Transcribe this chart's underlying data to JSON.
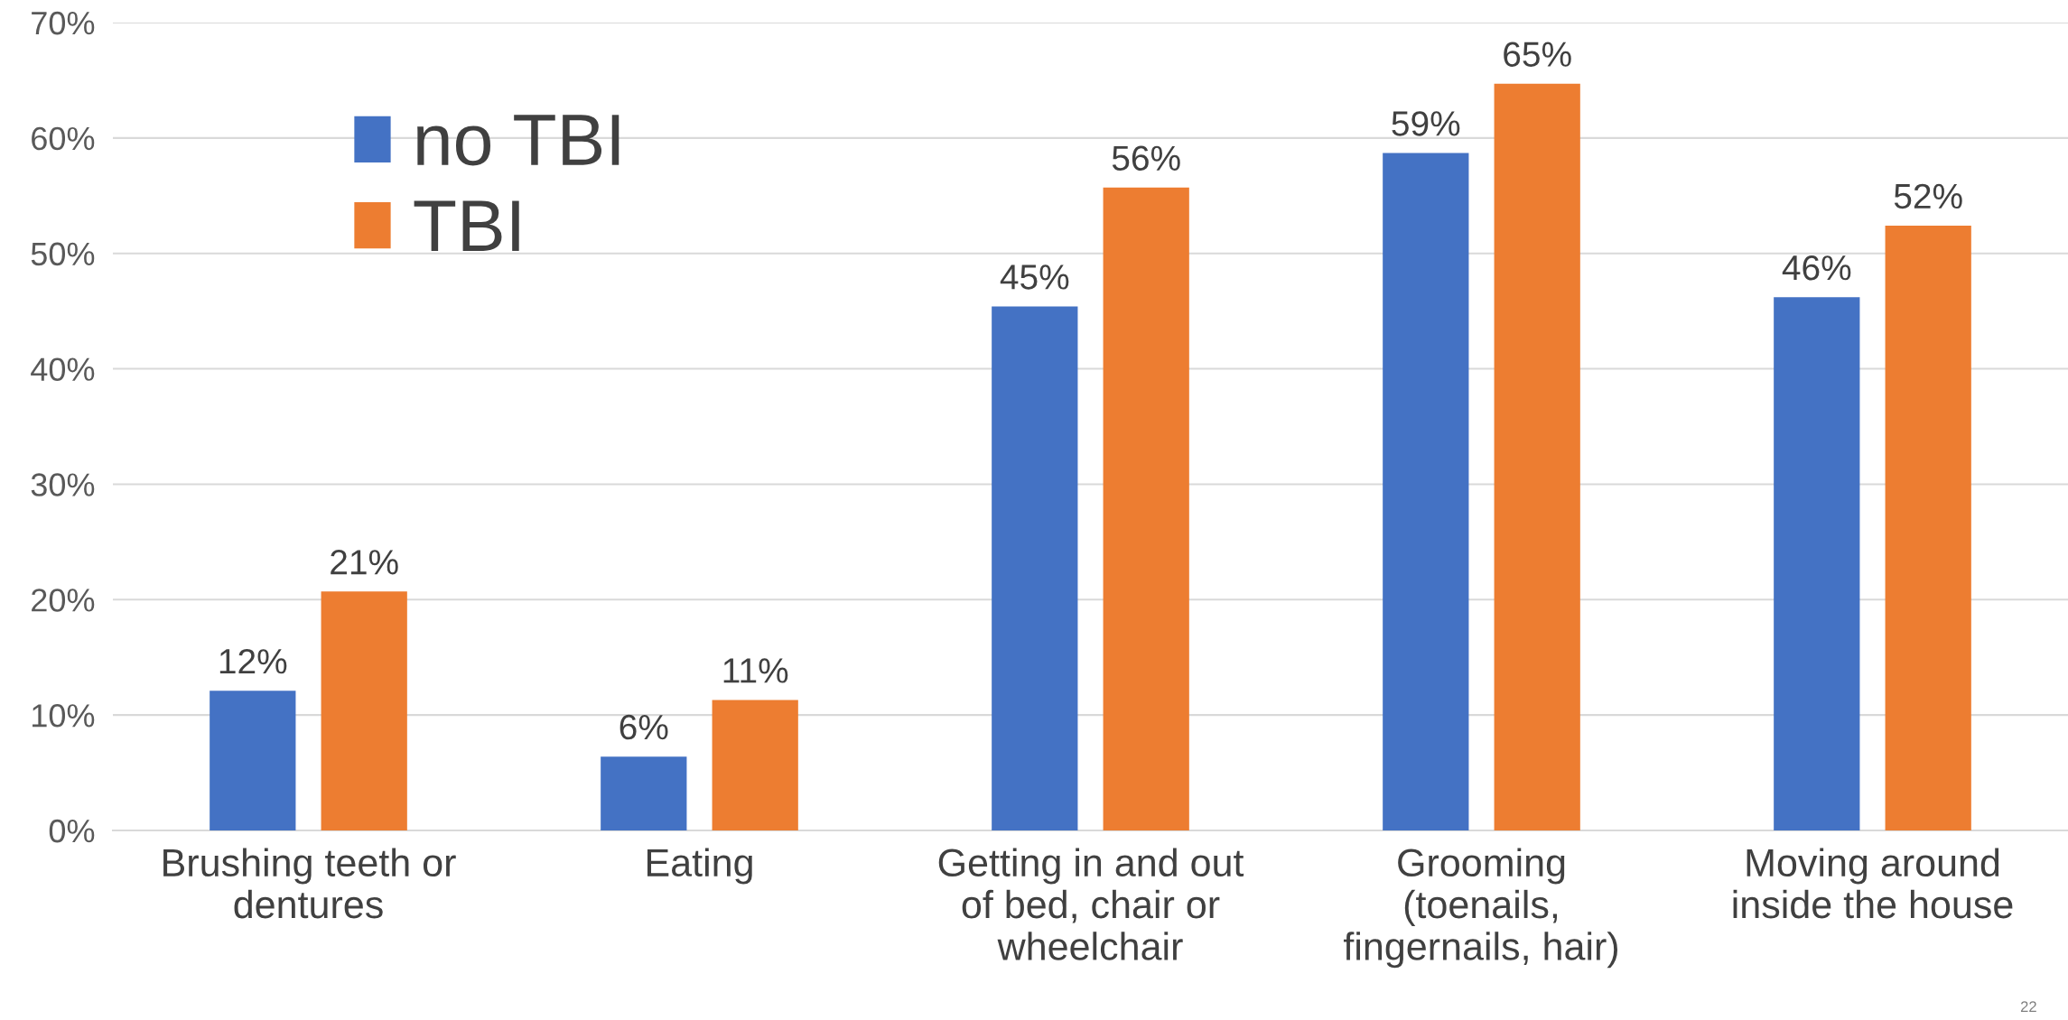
{
  "chart_data": {
    "type": "bar",
    "categories": [
      "Brushing teeth or\ndentures",
      "Eating",
      "Getting in and out\nof bed, chair or\nwheelchair",
      "Grooming\n(toenails,\nfingernails, hair)",
      "Moving around\ninside the house"
    ],
    "series": [
      {
        "name": "no TBI",
        "color": "#4472c4",
        "values": [
          12.1,
          6.4,
          45.4,
          58.7,
          46.2
        ],
        "value_labels": [
          "12%",
          "6%",
          "45%",
          "59%",
          "46%"
        ]
      },
      {
        "name": "TBI",
        "color": "#ed7d31",
        "values": [
          20.7,
          11.3,
          55.7,
          64.7,
          52.4
        ],
        "value_labels": [
          "21%",
          "11%",
          "56%",
          "65%",
          "52%"
        ]
      }
    ],
    "ylim": [
      0,
      70
    ],
    "yticks": [
      {
        "value": 0,
        "label": "0%"
      },
      {
        "value": 10,
        "label": "10%"
      },
      {
        "value": 20,
        "label": "20%"
      },
      {
        "value": 30,
        "label": "30%"
      },
      {
        "value": 40,
        "label": "40%"
      },
      {
        "value": 50,
        "label": "50%"
      },
      {
        "value": 60,
        "label": "60%"
      },
      {
        "value": 70,
        "label": "70%"
      }
    ],
    "grid": "y",
    "legend": "top left",
    "annotations": [
      "22"
    ]
  }
}
